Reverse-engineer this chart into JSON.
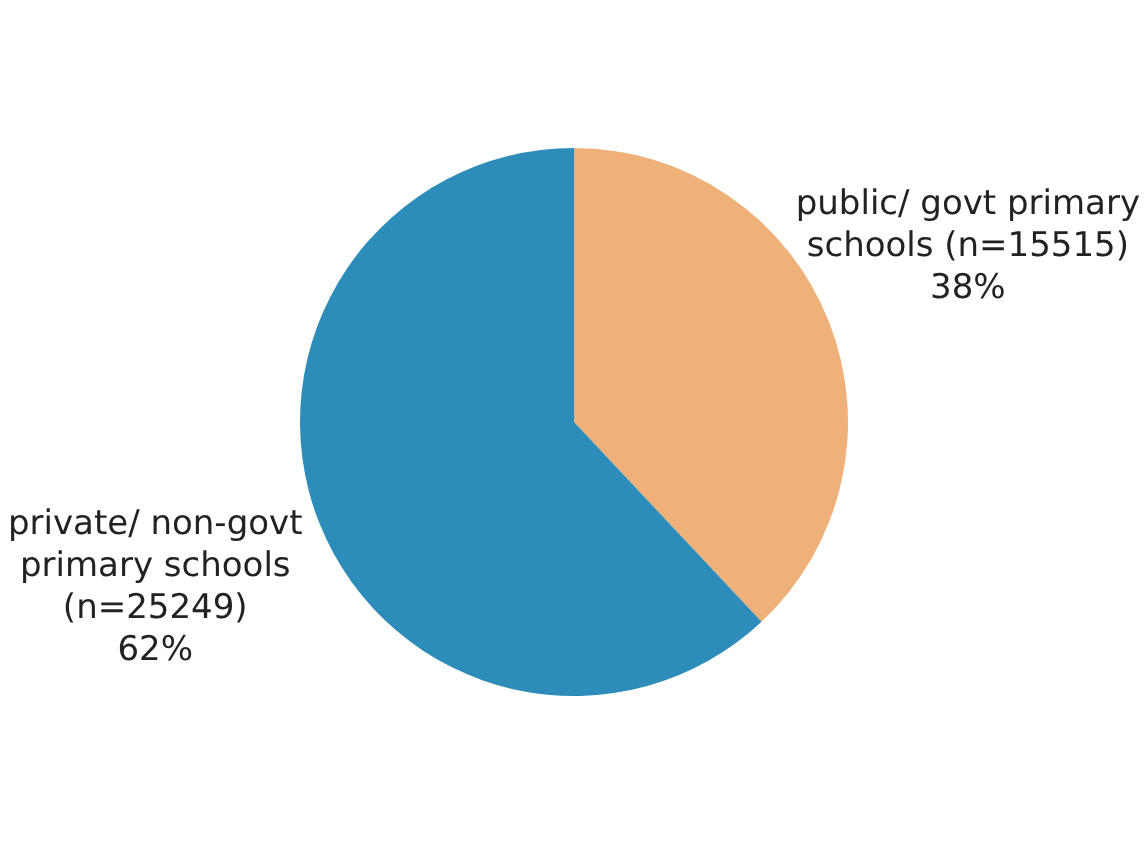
{
  "chart_data": {
    "type": "pie",
    "categories": [
      "public/ govt primary schools (n=15515)",
      "private/ non-govt primary schools (n=25249)"
    ],
    "values": [
      38,
      62
    ],
    "colors": [
      "#efb07a",
      "#2e8cba"
    ],
    "value_labels": [
      "38%",
      "62%"
    ],
    "legend": false
  }
}
